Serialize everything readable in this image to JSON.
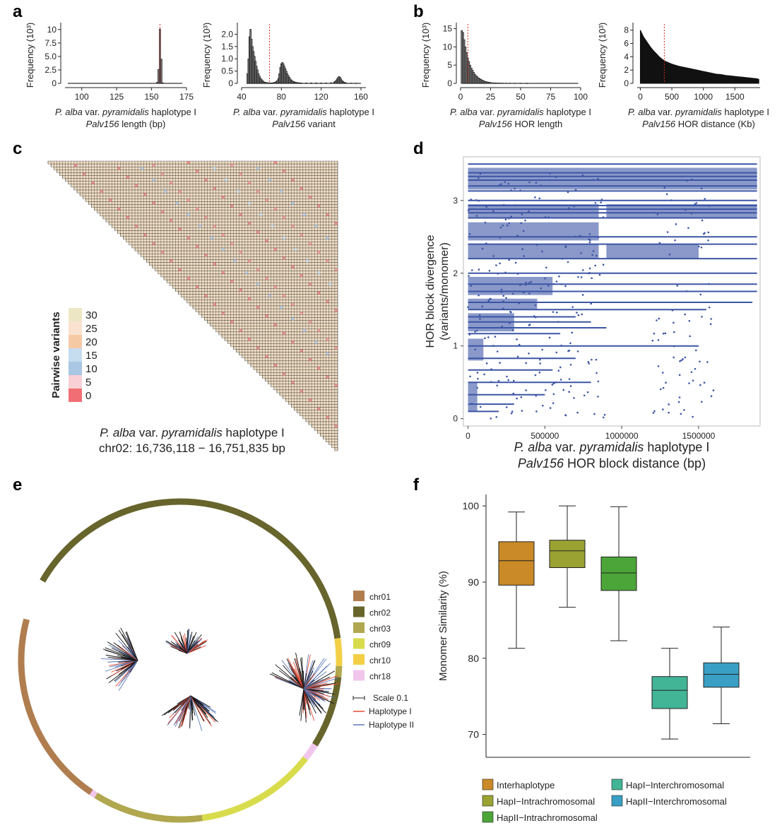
{
  "panel_labels": [
    "a",
    "b",
    "c",
    "d",
    "e",
    "f"
  ],
  "chart_data": [
    {
      "id": "a1",
      "type": "bar",
      "ylabel": "Frequency (10³)",
      "xlabel_species": "P. alba",
      "xlabel_rest": " var. ",
      "xlabel_var": "pyramidalis",
      "xlabel_hap": " haplotype I",
      "xlabel2_italic": "Palv156",
      "xlabel2_rest": " length (bp)",
      "xlim": [
        88,
        175
      ],
      "ylim": [
        0,
        10.5
      ],
      "xticks": [
        100,
        125,
        150,
        175
      ],
      "yticks": [
        0,
        2.5,
        5,
        7.5,
        10
      ],
      "yticklabels": [
        "0",
        "2.5",
        "5.0",
        "7.5",
        "10"
      ],
      "bars": [
        [
          154,
          0.2
        ],
        [
          155,
          2.6
        ],
        [
          156,
          10.1
        ],
        [
          157,
          4.5
        ],
        [
          158,
          0.1
        ]
      ],
      "baseline_range": [
        90,
        172
      ],
      "reference_line": 156
    },
    {
      "id": "a2",
      "type": "bar",
      "ylabel": "Frequency (10³)",
      "xlabel_species": "P. alba",
      "xlabel_rest": " var. ",
      "xlabel_var": "pyramidalis",
      "xlabel_hap": " haplotype I",
      "xlabel2_italic": "Palv156",
      "xlabel2_rest": " variant",
      "xlim": [
        40,
        165
      ],
      "ylim": [
        0,
        2.3
      ],
      "xticks": [
        40,
        80,
        120,
        160
      ],
      "yticks": [
        0,
        0.5,
        1,
        1.5,
        2
      ],
      "yticklabels": [
        "0",
        "0.5",
        "1.0",
        "1.5",
        "2.0"
      ],
      "bars": [
        [
          46,
          0.4
        ],
        [
          47,
          1.0
        ],
        [
          48,
          1.9
        ],
        [
          49,
          2.2
        ],
        [
          50,
          1.8
        ],
        [
          51,
          1.5
        ],
        [
          52,
          1.3
        ],
        [
          53,
          1.1
        ],
        [
          54,
          0.9
        ],
        [
          55,
          0.7
        ],
        [
          56,
          0.55
        ],
        [
          57,
          0.4
        ],
        [
          58,
          0.3
        ],
        [
          59,
          0.22
        ],
        [
          60,
          0.16
        ],
        [
          61,
          0.12
        ],
        [
          62,
          0.08
        ],
        [
          63,
          0.05
        ],
        [
          64,
          0.04
        ],
        [
          65,
          0.03
        ],
        [
          66,
          0.03
        ],
        [
          67,
          0.02
        ],
        [
          68,
          0.02
        ],
        [
          69,
          0.02
        ],
        [
          70,
          0.02
        ],
        [
          71,
          0.02
        ],
        [
          72,
          0.03
        ],
        [
          73,
          0.04
        ],
        [
          74,
          0.05
        ],
        [
          75,
          0.08
        ],
        [
          76,
          0.12
        ],
        [
          77,
          0.2
        ],
        [
          78,
          0.4
        ],
        [
          79,
          0.65
        ],
        [
          80,
          0.8
        ],
        [
          81,
          0.85
        ],
        [
          82,
          0.8
        ],
        [
          83,
          0.7
        ],
        [
          84,
          0.6
        ],
        [
          85,
          0.5
        ],
        [
          86,
          0.4
        ],
        [
          87,
          0.32
        ],
        [
          88,
          0.25
        ],
        [
          89,
          0.18
        ],
        [
          90,
          0.14
        ],
        [
          91,
          0.1
        ],
        [
          92,
          0.08
        ],
        [
          93,
          0.06
        ],
        [
          94,
          0.05
        ],
        [
          95,
          0.04
        ],
        [
          96,
          0.03
        ],
        [
          97,
          0.03
        ],
        [
          98,
          0.02
        ],
        [
          99,
          0.02
        ],
        [
          100,
          0.02
        ],
        [
          105,
          0.02
        ],
        [
          110,
          0.02
        ],
        [
          115,
          0.02
        ],
        [
          120,
          0.02
        ],
        [
          125,
          0.02
        ],
        [
          130,
          0.03
        ],
        [
          133,
          0.05
        ],
        [
          134,
          0.08
        ],
        [
          135,
          0.12
        ],
        [
          136,
          0.18
        ],
        [
          137,
          0.24
        ],
        [
          138,
          0.28
        ],
        [
          139,
          0.25
        ],
        [
          140,
          0.18
        ],
        [
          141,
          0.12
        ],
        [
          142,
          0.08
        ],
        [
          143,
          0.05
        ],
        [
          144,
          0.03
        ],
        [
          145,
          0.02
        ],
        [
          150,
          0.01
        ],
        [
          155,
          0.01
        ]
      ],
      "baseline_range": [
        45,
        160
      ],
      "reference_line": 68
    },
    {
      "id": "b1",
      "type": "bar",
      "ylabel": "Frequency (10³)",
      "xlabel_species": "P. alba",
      "xlabel_rest": " var. ",
      "xlabel_var": "pyramidalis",
      "xlabel_hap": " haplotype I",
      "xlabel2_italic": "Palv156",
      "xlabel2_rest": " HOR length",
      "xlim": [
        0,
        100
      ],
      "ylim": [
        0,
        15.5
      ],
      "xticks": [
        0,
        25,
        50,
        75,
        100
      ],
      "yticks": [
        0,
        5,
        10,
        15
      ],
      "yticklabels": [
        "0",
        "5",
        "10",
        "15"
      ],
      "bars": [
        [
          1,
          14.5
        ],
        [
          2,
          14.0
        ],
        [
          3,
          12.0
        ],
        [
          4,
          10.0
        ],
        [
          5,
          8.5
        ],
        [
          6,
          7.0
        ],
        [
          7,
          6.0
        ],
        [
          8,
          5.0
        ],
        [
          9,
          4.2
        ],
        [
          10,
          3.6
        ],
        [
          11,
          3.0
        ],
        [
          12,
          2.5
        ],
        [
          13,
          2.1
        ],
        [
          14,
          1.8
        ],
        [
          15,
          1.5
        ],
        [
          16,
          1.3
        ],
        [
          17,
          1.1
        ],
        [
          18,
          0.9
        ],
        [
          19,
          0.75
        ],
        [
          20,
          0.6
        ],
        [
          21,
          0.5
        ],
        [
          22,
          0.42
        ],
        [
          23,
          0.35
        ],
        [
          24,
          0.3
        ],
        [
          25,
          0.25
        ],
        [
          27,
          0.2
        ],
        [
          29,
          0.15
        ],
        [
          31,
          0.12
        ],
        [
          33,
          0.1
        ],
        [
          35,
          0.08
        ],
        [
          38,
          0.06
        ],
        [
          41,
          0.05
        ],
        [
          45,
          0.04
        ],
        [
          50,
          0.03
        ],
        [
          55,
          0.02
        ]
      ],
      "baseline_range": [
        1,
        98
      ],
      "reference_line": 6
    },
    {
      "id": "b2",
      "type": "area",
      "ylabel": "Frequency (10³)",
      "xlabel_species": "P. alba",
      "xlabel_rest": " var. ",
      "xlabel_var": "pyramidalis",
      "xlabel_hap": " haplotype I",
      "xlabel2_italic": "Palv156",
      "xlabel2_rest": " HOR distance (Kb)",
      "xlim": [
        -50,
        1900
      ],
      "ylim": [
        0,
        8.5
      ],
      "xticks": [
        0,
        500,
        1000,
        1500
      ],
      "yticks": [
        0,
        2,
        4,
        6,
        8
      ],
      "yticklabels": [
        "0",
        "2",
        "4",
        "6",
        "8"
      ],
      "x": [
        0,
        50,
        100,
        150,
        200,
        250,
        300,
        350,
        400,
        450,
        500,
        550,
        600,
        650,
        700,
        750,
        800,
        850,
        900,
        950,
        1000,
        1050,
        1100,
        1150,
        1200,
        1250,
        1300,
        1350,
        1400,
        1450,
        1500,
        1550,
        1600,
        1650,
        1700,
        1750,
        1800,
        1850,
        1880
      ],
      "y": [
        8.0,
        7.0,
        6.3,
        5.6,
        5.0,
        4.5,
        4.0,
        3.6,
        3.3,
        3.1,
        2.9,
        2.75,
        2.6,
        2.5,
        2.4,
        2.3,
        2.2,
        2.1,
        2.0,
        1.9,
        1.8,
        1.7,
        1.6,
        1.5,
        1.4,
        1.35,
        1.3,
        1.2,
        1.15,
        1.1,
        1.05,
        1.0,
        0.95,
        0.9,
        0.85,
        0.8,
        0.75,
        0.7,
        0.6
      ],
      "reference_line": 380
    },
    {
      "id": "c",
      "type": "heatmap",
      "legend_title": "Pairwise variants",
      "legend_ticks": [
        "30",
        "25",
        "20",
        "15",
        "10",
        "5",
        "0"
      ],
      "legend_colors": [
        "#ece6c4",
        "#f9e2d0",
        "#f6c9a5",
        "#c6dcef",
        "#a9c6e3",
        "#f8d0d6",
        "#f06e74"
      ],
      "grid_n": 100,
      "caption_species": "P. alba",
      "caption_rest": " var. ",
      "caption_var": "pyramidalis",
      "caption_hap": " haplotype I",
      "caption_line2": "chr02: 16,736,118 − 16,751,835 bp"
    },
    {
      "id": "d",
      "type": "scatter",
      "ylabel_line1": "HOR block divergence",
      "ylabel_line2": "(variants/monomer)",
      "xlabel_species": "P. alba",
      "xlabel_rest": " var. ",
      "xlabel_var": "pyramidalis",
      "xlabel_hap": " haplotype I",
      "xlabel2_italic": "Palv156",
      "xlabel2_rest": " HOR block distance (bp)",
      "xlim": [
        -30000,
        1900000
      ],
      "ylim": [
        -0.1,
        3.6
      ],
      "xticks": [
        0,
        500000,
        1000000,
        1500000
      ],
      "xticklabels": [
        "0",
        "500000",
        "1000000",
        "1500000"
      ],
      "yticks": [
        0,
        1,
        2,
        3
      ],
      "color": "#3c55a5",
      "lines": [
        [
          3.5,
          1880000
        ],
        [
          3.38,
          1880000
        ],
        [
          3.33,
          1880000
        ],
        [
          3.28,
          1880000
        ],
        [
          3.2,
          1880000
        ],
        [
          3.13,
          1880000
        ],
        [
          3.0,
          1880000
        ],
        [
          2.93,
          1880000
        ],
        [
          2.88,
          1880000
        ],
        [
          2.83,
          1880000
        ],
        [
          2.76,
          1880000
        ],
        [
          2.5,
          1880000
        ],
        [
          2.4,
          1880000
        ],
        [
          2.2,
          1880000
        ],
        [
          2.0,
          1880000
        ],
        [
          1.85,
          1880000
        ],
        [
          1.75,
          1880000
        ],
        [
          1.6,
          1850000
        ],
        [
          1.5,
          1550000
        ],
        [
          1.4,
          700000
        ],
        [
          1.33,
          800000
        ],
        [
          1.25,
          900000
        ],
        [
          1.17,
          600000
        ],
        [
          1.0,
          1500000
        ],
        [
          0.83,
          700000
        ],
        [
          0.67,
          550000
        ],
        [
          0.5,
          800000
        ],
        [
          0.33,
          500000
        ],
        [
          0.2,
          300000
        ],
        [
          0.1,
          200000
        ]
      ]
    },
    {
      "id": "e",
      "type": "tree",
      "legend": [
        {
          "name": "chr01",
          "color": "#b07d4f"
        },
        {
          "name": "chr02",
          "color": "#67652c"
        },
        {
          "name": "chr03",
          "color": "#b0a74f"
        },
        {
          "name": "chr09",
          "color": "#d8dc4c"
        },
        {
          "name": "chr10",
          "color": "#f3cf46"
        },
        {
          "name": "chr18",
          "color": "#f1c6ec"
        }
      ],
      "scale_label": "Scale 0.1",
      "hap_legend": [
        {
          "name": "Haplotype I",
          "color": "#e34a33"
        },
        {
          "name": "Haplotype II",
          "color": "#5a78b8"
        }
      ],
      "ring_arcs": [
        {
          "chr": "chr02",
          "from": -60,
          "to": 82
        },
        {
          "chr": "chr10",
          "from": 82,
          "to": 92
        },
        {
          "chr": "chr03",
          "from": 92,
          "to": 96
        },
        {
          "chr": "chr02",
          "from": 96,
          "to": 122
        },
        {
          "chr": "chr18",
          "from": 122,
          "to": 128
        },
        {
          "chr": "chr09",
          "from": 128,
          "to": 172
        },
        {
          "chr": "chr03",
          "from": 172,
          "to": 212
        },
        {
          "chr": "chr18",
          "from": 212,
          "to": 214
        },
        {
          "chr": "chr01",
          "from": 214,
          "to": 285
        }
      ]
    },
    {
      "id": "f",
      "type": "box",
      "ylabel": "Monomer Similarity (%)",
      "ylim": [
        67,
        101.5
      ],
      "yticks": [
        70,
        80,
        90,
        100
      ],
      "boxes": [
        {
          "name": "Interhaplotype",
          "color": "#c98a27",
          "min": 81.3,
          "q1": 89.6,
          "median": 92.8,
          "q3": 95.3,
          "max": 99.2
        },
        {
          "name": "HapI−Intrachromosomal",
          "color": "#9aa232",
          "min": 86.7,
          "q1": 91.9,
          "median": 94.1,
          "q3": 95.5,
          "max": 100
        },
        {
          "name": "HapII−Intrachromosomal",
          "color": "#4ca538",
          "min": 82.3,
          "q1": 88.9,
          "median": 91.2,
          "q3": 93.3,
          "max": 99.9
        },
        {
          "name": "HapI−Interchromosomal",
          "color": "#42b596",
          "min": 69.4,
          "q1": 73.4,
          "median": 75.8,
          "q3": 77.6,
          "max": 81.3
        },
        {
          "name": "HapII−Interchromosomal",
          "color": "#3a9fc4",
          "min": 71.4,
          "q1": 76.2,
          "median": 77.9,
          "q3": 79.4,
          "max": 84.1
        }
      ]
    }
  ]
}
